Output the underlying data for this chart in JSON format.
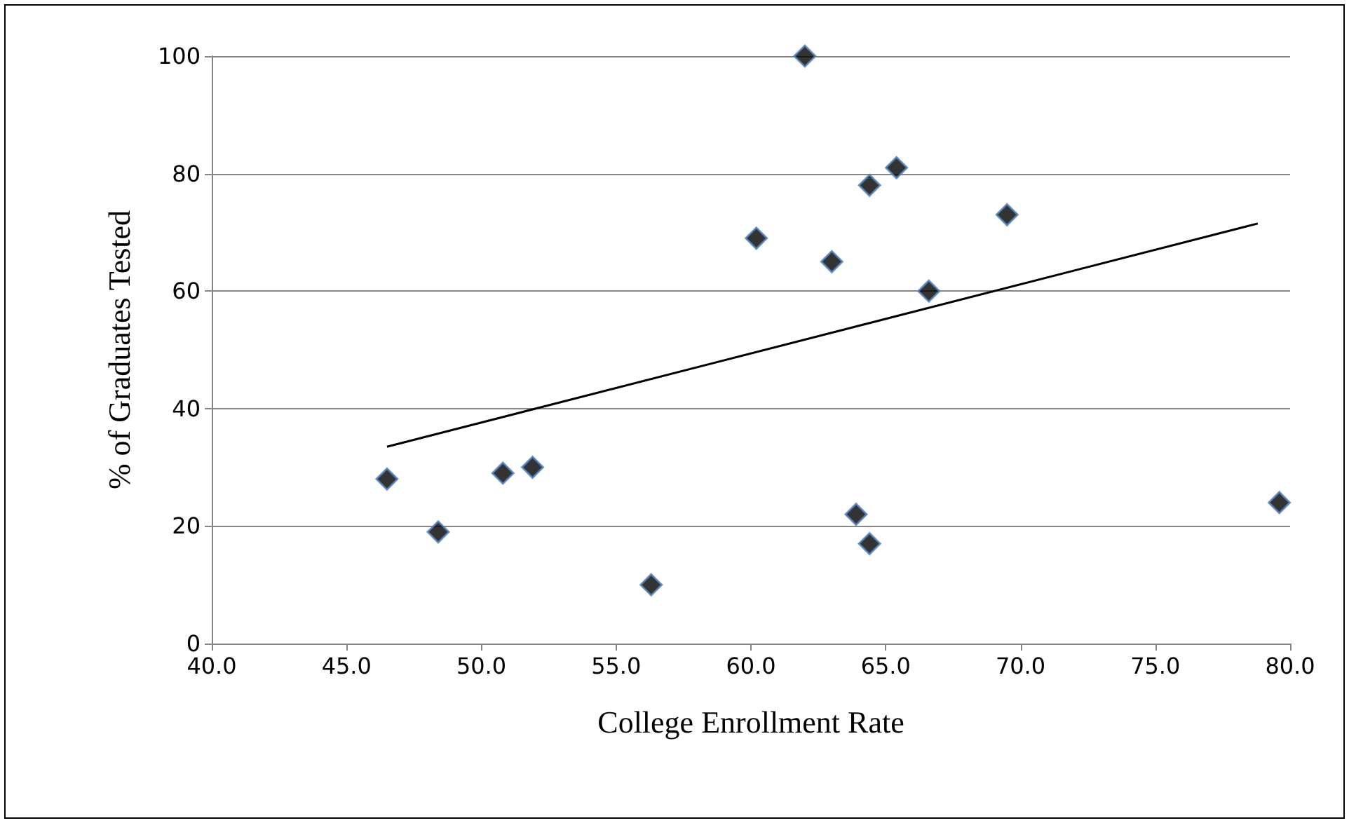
{
  "chart_data": {
    "type": "scatter",
    "xlabel": "College Enrollment Rate",
    "ylabel": "% of Graduates Tested",
    "series": [
      {
        "color": "#000000",
        "marker": "diamond",
        "x": [
          46.5,
          48.4,
          50.8,
          51.9,
          56.3,
          60.2,
          62.0,
          63.0,
          63.9,
          64.4,
          64.4,
          65.4,
          66.6,
          69.5,
          79.6
        ],
        "values": [
          28,
          19,
          29,
          30,
          10,
          69,
          100,
          65,
          22,
          78,
          17,
          81,
          60,
          73,
          24
        ]
      },
      {
        "type": "line",
        "color": "#000000",
        "marker": "none",
        "line_style": "solid",
        "x": [
          46.5,
          78.8
        ],
        "values": [
          33.5,
          71.5
        ]
      }
    ],
    "xlim": [
      40,
      80
    ],
    "xticks": [
      {
        "value": 40,
        "label": "40.0"
      },
      {
        "value": 45,
        "label": "45.0"
      },
      {
        "value": 50,
        "label": "50.0"
      },
      {
        "value": 55,
        "label": "55.0"
      },
      {
        "value": 60,
        "label": "60.0"
      },
      {
        "value": 65,
        "label": "65.0"
      },
      {
        "value": 70,
        "label": "70.0"
      },
      {
        "value": 75,
        "label": "75.0"
      },
      {
        "value": 80,
        "label": "80.0"
      }
    ],
    "ylim": [
      0,
      100
    ],
    "yticks": [
      0,
      20,
      40,
      60,
      80,
      100
    ],
    "grid": "y"
  }
}
